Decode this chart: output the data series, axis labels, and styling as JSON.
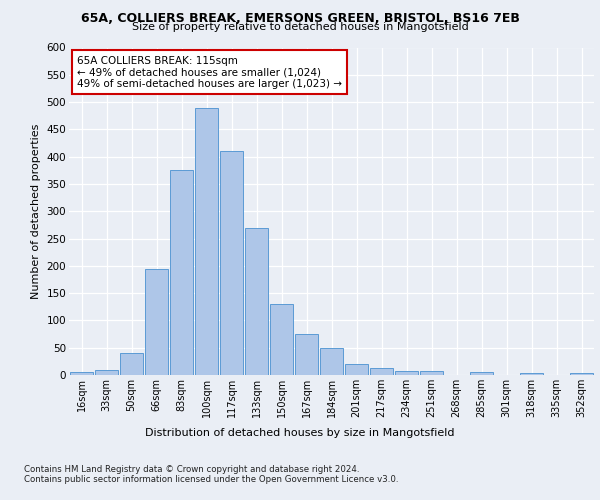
{
  "title_line1": "65A, COLLIERS BREAK, EMERSONS GREEN, BRISTOL, BS16 7EB",
  "title_line2": "Size of property relative to detached houses in Mangotsfield",
  "xlabel": "Distribution of detached houses by size in Mangotsfield",
  "ylabel": "Number of detached properties",
  "categories": [
    "16sqm",
    "33sqm",
    "50sqm",
    "66sqm",
    "83sqm",
    "100sqm",
    "117sqm",
    "133sqm",
    "150sqm",
    "167sqm",
    "184sqm",
    "201sqm",
    "217sqm",
    "234sqm",
    "251sqm",
    "268sqm",
    "285sqm",
    "301sqm",
    "318sqm",
    "335sqm",
    "352sqm"
  ],
  "values": [
    5,
    10,
    40,
    195,
    375,
    490,
    410,
    270,
    130,
    75,
    50,
    20,
    12,
    8,
    7,
    0,
    6,
    0,
    3,
    0,
    3
  ],
  "bar_color": "#aec6e8",
  "bar_edge_color": "#5b9bd5",
  "highlight_index": 6,
  "ylim": [
    0,
    600
  ],
  "yticks": [
    0,
    50,
    100,
    150,
    200,
    250,
    300,
    350,
    400,
    450,
    500,
    550,
    600
  ],
  "annotation_text_line1": "65A COLLIERS BREAK: 115sqm",
  "annotation_text_line2": "← 49% of detached houses are smaller (1,024)",
  "annotation_text_line3": "49% of semi-detached houses are larger (1,023) →",
  "annotation_box_color": "#ffffff",
  "annotation_border_color": "#cc0000",
  "bg_color": "#eaeef5",
  "footer_line1": "Contains HM Land Registry data © Crown copyright and database right 2024.",
  "footer_line2": "Contains public sector information licensed under the Open Government Licence v3.0."
}
